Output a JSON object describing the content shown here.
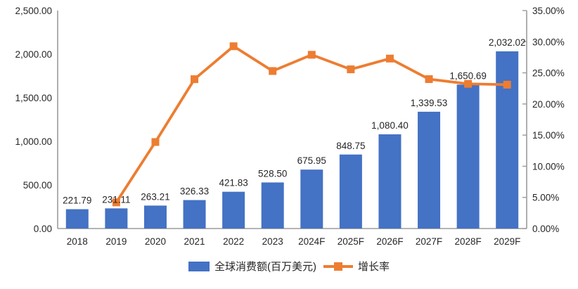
{
  "chart_data": {
    "type": "bar",
    "combo": "bar+line",
    "title": "",
    "categories": [
      "2018",
      "2019",
      "2020",
      "2021",
      "2022",
      "2023",
      "2024F",
      "2025F",
      "2026F",
      "2027F",
      "2028F",
      "2029F"
    ],
    "series": [
      {
        "name": "全球消费额(百万美元)",
        "type": "bar",
        "axis": "left",
        "color": "#4472C4",
        "values": [
          221.79,
          231.11,
          263.21,
          326.33,
          421.83,
          528.5,
          675.95,
          848.75,
          1080.4,
          1339.53,
          1650.69,
          2032.02
        ],
        "labels": [
          "221.79",
          "231.11",
          "263.21",
          "326.33",
          "421.83",
          "528.50",
          "675.95",
          "848.75",
          "1,080.40",
          "1,339.53",
          "1,650.69",
          "2,032.02"
        ]
      },
      {
        "name": "增长率",
        "type": "line",
        "axis": "right",
        "color": "#ED7D31",
        "values": [
          null,
          4.2,
          13.89,
          23.98,
          29.27,
          25.29,
          27.9,
          25.56,
          27.29,
          23.99,
          23.23,
          23.1
        ]
      }
    ],
    "left_axis": {
      "min": 0,
      "max": 2500,
      "ticks": [
        {
          "value": 0,
          "label": "0.00"
        },
        {
          "value": 500,
          "label": "500.00"
        },
        {
          "value": 1000,
          "label": "1,000.00"
        },
        {
          "value": 1500,
          "label": "1,500.00"
        },
        {
          "value": 2000,
          "label": "2,000.00"
        },
        {
          "value": 2500,
          "label": "2,500.00"
        }
      ]
    },
    "right_axis": {
      "min": 0,
      "max": 35,
      "ticks": [
        {
          "value": 0,
          "label": "0.00%"
        },
        {
          "value": 5,
          "label": "5.00%"
        },
        {
          "value": 10,
          "label": "10.00%"
        },
        {
          "value": 15,
          "label": "15.00%"
        },
        {
          "value": 20,
          "label": "20.00%"
        },
        {
          "value": 25,
          "label": "25.00%"
        },
        {
          "value": 30,
          "label": "30.00%"
        },
        {
          "value": 35,
          "label": "35.00%"
        }
      ]
    },
    "grid": false,
    "legend_position": "bottom"
  },
  "legend": {
    "items": [
      {
        "label": "全球消费额(百万美元)",
        "color": "#4472C4",
        "marker": "bar-swatch"
      },
      {
        "label": "增长率",
        "color": "#ED7D31",
        "marker": "line-square"
      }
    ]
  },
  "colors": {
    "bar": "#4472C4",
    "line": "#ED7D31",
    "axis_line": "#9b9b9b",
    "text": "#262626"
  }
}
